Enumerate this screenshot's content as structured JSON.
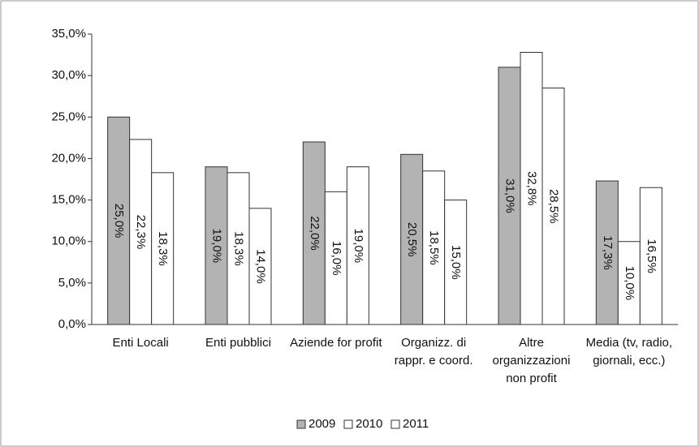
{
  "chart_data": {
    "type": "bar",
    "categories": [
      "Enti Locali",
      "Enti pubblici",
      "Aziende for profit",
      "Organizz. di rappr. e coord.",
      "Altre organizzazioni non profit",
      "Media (tv, radio, giornali, ecc.)"
    ],
    "series": [
      {
        "name": "2009",
        "color": "#b3b3b3",
        "values": [
          25.0,
          19.0,
          22.0,
          20.5,
          31.0,
          17.3
        ],
        "value_labels": [
          "25,0%",
          "19,0%",
          "22,0%",
          "20,5%",
          "31,0%",
          "17,3%"
        ]
      },
      {
        "name": "2010",
        "color": "#ffffff",
        "values": [
          22.3,
          18.3,
          16.0,
          18.5,
          32.8,
          10.0
        ],
        "value_labels": [
          "22,3%",
          "18,3%",
          "16,0%",
          "18,5%",
          "32,8%",
          "10,0%"
        ]
      },
      {
        "name": "2011",
        "color": "#ffffff",
        "values": [
          18.3,
          14.0,
          19.0,
          15.0,
          28.5,
          16.5
        ],
        "value_labels": [
          "18,3%",
          "14,0%",
          "19,0%",
          "15,0%",
          "28,5%",
          "16,5%"
        ]
      }
    ],
    "ylim": [
      0,
      35
    ],
    "yticks": [
      {
        "value": 0,
        "label": "0,0%"
      },
      {
        "value": 5,
        "label": "5,0%"
      },
      {
        "value": 10,
        "label": "10,0%"
      },
      {
        "value": 15,
        "label": "15,0%"
      },
      {
        "value": 20,
        "label": "20,0%"
      },
      {
        "value": 25,
        "label": "25,0%"
      },
      {
        "value": 30,
        "label": "30,0%"
      },
      {
        "value": 35,
        "label": "35,0%"
      }
    ],
    "legend": "bottom"
  }
}
